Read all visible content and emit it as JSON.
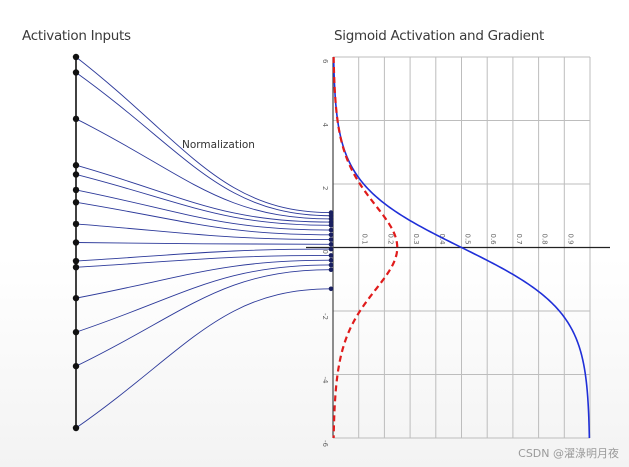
{
  "titles": {
    "left": "Activation Inputs",
    "right": "Sigmoid Activation and Gradient",
    "normalization": "Normalization"
  },
  "watermark": "CSDN @濯淥明月夜",
  "colors": {
    "mapping_lines": "#2d3a9a",
    "sigmoid_curve": "#1f2fd8",
    "gradient_curve": "#e01b1b",
    "grid": "#bdbdbd",
    "axis": "#222222"
  },
  "chart_data": {
    "type": "line",
    "orientation": "rotated: input on vertical axis, output on horizontal axis",
    "series": [
      {
        "name": "",
        "style": "solid",
        "function": "sigmoid",
        "color": "#1f2fd8"
      },
      {
        "name": "",
        "style": "dashed",
        "function": "sigmoid_gradient",
        "color": "#e01b1b"
      }
    ],
    "input_ticks": [
      "6",
      "4",
      "2",
      "0",
      "-2",
      "-4",
      "-6"
    ],
    "input_range": [
      -6,
      6
    ],
    "output_ticks": [
      "0.1",
      "0.2",
      "0.3",
      "0.4",
      "0.5",
      "0.6",
      "0.7",
      "0.8",
      "0.9"
    ],
    "output_range": [
      0,
      1
    ],
    "grid": true,
    "activation_inputs": [
      6.0,
      5.5,
      4.0,
      2.5,
      2.2,
      1.7,
      1.3,
      0.6,
      0.0,
      -0.6,
      -0.8,
      -1.8,
      -2.9,
      -4.0,
      -6.0
    ],
    "normalized_inputs": [
      1.1,
      1.0,
      0.9,
      0.8,
      0.7,
      0.55,
      0.4,
      0.25,
      0.1,
      -0.05,
      -0.25,
      -0.4,
      -0.55,
      -0.7,
      -1.3
    ]
  }
}
